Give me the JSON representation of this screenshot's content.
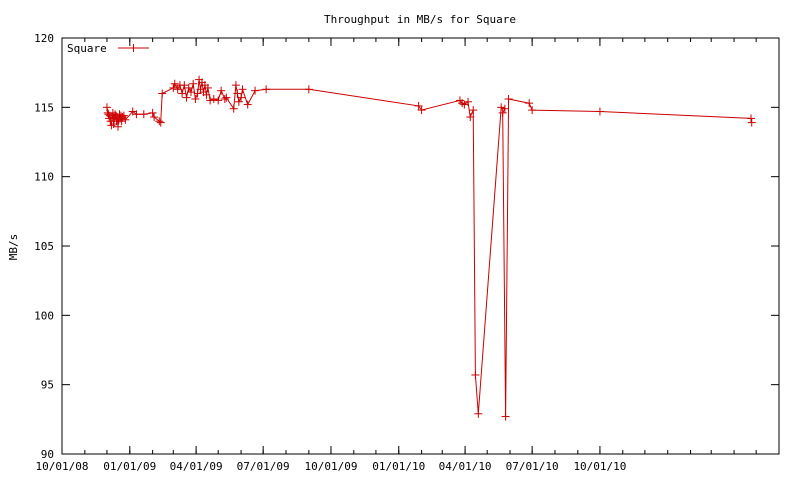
{
  "chart_data": {
    "type": "line",
    "title": "Throughput in MB/s for Square",
    "xlabel": "",
    "ylabel": "MB/s",
    "ylim": [
      90,
      120
    ],
    "yticks": [
      90,
      95,
      100,
      105,
      110,
      115,
      120
    ],
    "xaxis_type": "date",
    "xlim": [
      "2008-10-01",
      "2011-06-01"
    ],
    "xtick_labels": [
      "10/01/08",
      "01/01/09",
      "04/01/09",
      "07/01/09",
      "10/01/09",
      "01/01/10",
      "04/01/10",
      "07/01/10",
      "10/01/10"
    ],
    "xtick_dates": [
      "2008-10-01",
      "2009-01-01",
      "2009-04-01",
      "2009-07-01",
      "2009-10-01",
      "2010-01-01",
      "2010-04-01",
      "2010-07-01",
      "2010-10-01"
    ],
    "grid": false,
    "legend_position": "top-left",
    "series_color": "#cc0000",
    "series": [
      {
        "name": "Square",
        "x": [
          "2008-12-01",
          "2008-12-02",
          "2008-12-03",
          "2008-12-04",
          "2008-12-05",
          "2008-12-06",
          "2008-12-07",
          "2008-12-08",
          "2008-12-09",
          "2008-12-10",
          "2008-12-11",
          "2008-12-12",
          "2008-12-13",
          "2008-12-14",
          "2008-12-15",
          "2008-12-16",
          "2008-12-17",
          "2008-12-18",
          "2008-12-19",
          "2008-12-20",
          "2008-12-21",
          "2008-12-22",
          "2008-12-24",
          "2008-12-26",
          "2009-01-05",
          "2009-01-10",
          "2009-01-20",
          "2009-02-01",
          "2009-02-03",
          "2009-02-10",
          "2009-02-12",
          "2009-02-14",
          "2009-03-01",
          "2009-03-03",
          "2009-03-07",
          "2009-03-10",
          "2009-03-13",
          "2009-03-16",
          "2009-03-19",
          "2009-03-22",
          "2009-03-25",
          "2009-03-28",
          "2009-03-31",
          "2009-04-03",
          "2009-04-05",
          "2009-04-07",
          "2009-04-09",
          "2009-04-11",
          "2009-04-13",
          "2009-04-15",
          "2009-04-17",
          "2009-04-20",
          "2009-04-25",
          "2009-05-01",
          "2009-05-05",
          "2009-05-10",
          "2009-05-12",
          "2009-05-22",
          "2009-05-25",
          "2009-05-27",
          "2009-05-29",
          "2009-06-01",
          "2009-06-03",
          "2009-06-10",
          "2009-06-20",
          "2009-07-05",
          "2009-09-01",
          "2010-01-28",
          "2010-02-01",
          "2010-03-25",
          "2010-03-28",
          "2010-03-31",
          "2010-04-05",
          "2010-04-08",
          "2010-04-12",
          "2010-04-15",
          "2010-04-19",
          "2010-05-20",
          "2010-05-25",
          "2010-05-22",
          "2010-05-26",
          "2010-05-30",
          "2010-06-27",
          "2010-07-01",
          "2010-10-01",
          "2011-04-24",
          "2011-04-25"
        ],
        "y": [
          115.0,
          114.6,
          114.5,
          114.2,
          114.4,
          114.0,
          113.7,
          114.3,
          114.6,
          113.8,
          114.2,
          114.5,
          114.4,
          114.0,
          114.3,
          113.6,
          114.1,
          114.5,
          114.2,
          114.4,
          114.0,
          114.3,
          114.4,
          114.1,
          114.7,
          114.5,
          114.5,
          114.6,
          114.3,
          114.0,
          113.9,
          116.0,
          116.4,
          116.7,
          116.3,
          116.6,
          116.0,
          116.6,
          115.7,
          116.4,
          116.1,
          116.7,
          115.6,
          116.0,
          117.0,
          116.3,
          116.8,
          116.1,
          116.6,
          115.9,
          116.4,
          115.5,
          115.6,
          115.5,
          116.2,
          115.6,
          115.7,
          114.9,
          116.6,
          116.0,
          115.4,
          115.7,
          116.3,
          115.2,
          116.2,
          116.3,
          116.3,
          115.1,
          114.8,
          115.5,
          115.3,
          115.2,
          115.4,
          114.3,
          114.8,
          95.7,
          92.9,
          115.0,
          114.9,
          114.6,
          92.7,
          115.6,
          115.3,
          114.8,
          114.7,
          114.2,
          113.9
        ]
      }
    ]
  }
}
